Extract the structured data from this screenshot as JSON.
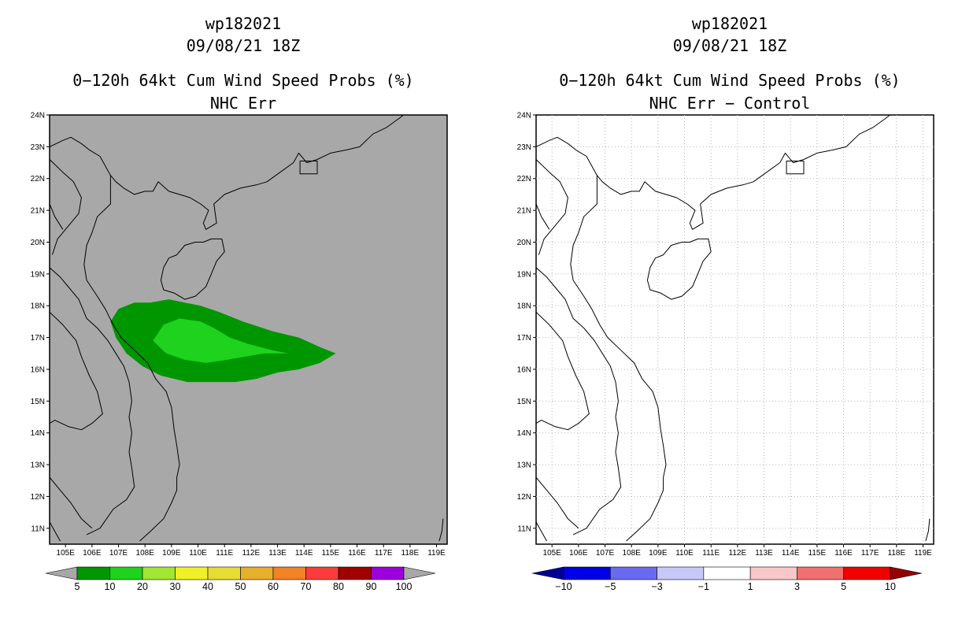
{
  "panels": [
    {
      "id": "left",
      "storm_id": "wp182021",
      "datetime": "09/08/21 18Z",
      "product": "0−120h 64kt Cum Wind Speed Probs (%)",
      "subtitle": "NHC Err",
      "background_color": "#a8a8a8",
      "colorbar": {
        "labels": [
          "5",
          "10",
          "20",
          "30",
          "40",
          "50",
          "60",
          "70",
          "80",
          "90",
          "100"
        ],
        "colors": [
          "#009600",
          "#1ed21e",
          "#a0e632",
          "#f0f028",
          "#e6dc32",
          "#e6af2d",
          "#f08228",
          "#fa3c3c",
          "#a00000",
          "#9b00dc"
        ],
        "end_color": "#a8a8a8"
      },
      "prob_areas": [
        {
          "threshold": "5",
          "color": "#009600"
        },
        {
          "threshold": "10",
          "color": "#1ed21e"
        }
      ]
    },
    {
      "id": "right",
      "storm_id": "wp182021",
      "datetime": "09/08/21 18Z",
      "product": "0−120h 64kt Cum Wind Speed Probs (%)",
      "subtitle": "NHC Err − Control",
      "background_color": "#ffffff",
      "colorbar": {
        "labels": [
          "−10",
          "−5",
          "−3",
          "−1",
          "1",
          "3",
          "5",
          "10"
        ],
        "colors": [
          "#0000e6",
          "#6a6af0",
          "#c8c8f8",
          "#ffffff",
          "#f8c8c8",
          "#f07070",
          "#f00000"
        ],
        "left_end_color": "#000096",
        "right_end_color": "#960000"
      }
    }
  ],
  "map": {
    "lon_ticks": [
      "105E",
      "106E",
      "107E",
      "108E",
      "109E",
      "110E",
      "111E",
      "112E",
      "113E",
      "114E",
      "115E",
      "116E",
      "117E",
      "118E",
      "119E"
    ],
    "lat_ticks": [
      "24N",
      "23N",
      "22N",
      "21N",
      "20N",
      "19N",
      "18N",
      "17N",
      "16N",
      "15N",
      "14N",
      "13N",
      "12N",
      "11N"
    ],
    "lon_range": [
      104.4,
      119.4
    ],
    "lat_range": [
      10.5,
      24.0
    ],
    "coast_color": "#000000",
    "grid_color": "#b4b4b4"
  }
}
